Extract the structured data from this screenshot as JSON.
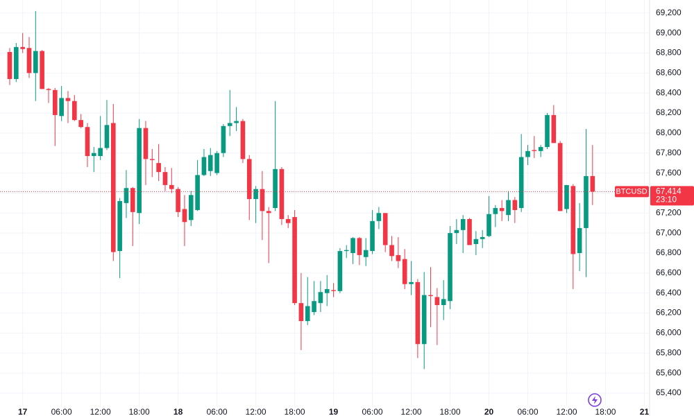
{
  "chart_data": {
    "type": "candlestick",
    "symbol": "BTCUSD",
    "last_price": {
      "value": 67414,
      "label": "67,414"
    },
    "countdown": "23:10",
    "up_color": "#089981",
    "down_color": "#f23645",
    "grid": true,
    "ylim": [
      65275,
      69330
    ],
    "xlim": [
      -1.5,
      98.7
    ],
    "yticks": [
      {
        "value": 65400,
        "label": "65,400"
      },
      {
        "value": 65600,
        "label": "65,600"
      },
      {
        "value": 65800,
        "label": "65,800"
      },
      {
        "value": 66000,
        "label": "66,000"
      },
      {
        "value": 66200,
        "label": "66,200"
      },
      {
        "value": 66400,
        "label": "66,400"
      },
      {
        "value": 66600,
        "label": "66,600"
      },
      {
        "value": 66800,
        "label": "66,800"
      },
      {
        "value": 67000,
        "label": "67,000"
      },
      {
        "value": 67200,
        "label": "67,200"
      },
      {
        "value": 67400,
        "label": "67,400"
      },
      {
        "value": 67600,
        "label": "67,600"
      },
      {
        "value": 67800,
        "label": "67,800"
      },
      {
        "value": 68000,
        "label": "68,000"
      },
      {
        "value": 68200,
        "label": "68,200"
      },
      {
        "value": 68400,
        "label": "68,400"
      },
      {
        "value": 68600,
        "label": "68,600"
      },
      {
        "value": 68800,
        "label": "68,800"
      },
      {
        "value": 69000,
        "label": "69,000"
      },
      {
        "value": 69200,
        "label": "69,200"
      }
    ],
    "xticks": [
      {
        "value": 2,
        "label": "17"
      },
      {
        "value": 8,
        "label": "06:00"
      },
      {
        "value": 14,
        "label": "12:00"
      },
      {
        "value": 20,
        "label": "18:00"
      },
      {
        "value": 26,
        "label": "18"
      },
      {
        "value": 32,
        "label": "06:00"
      },
      {
        "value": 38,
        "label": "12:00"
      },
      {
        "value": 44,
        "label": "18:00"
      },
      {
        "value": 50,
        "label": "19"
      },
      {
        "value": 56,
        "label": "06:00"
      },
      {
        "value": 62,
        "label": "12:00"
      },
      {
        "value": 68,
        "label": "18:00"
      },
      {
        "value": 74,
        "label": "20"
      },
      {
        "value": 80,
        "label": "06:00"
      },
      {
        "value": 86,
        "label": "12:00"
      },
      {
        "value": 92,
        "label": "18:00"
      },
      {
        "value": 98,
        "label": "21"
      }
    ],
    "open": [
      68810,
      68540,
      68860,
      68850,
      68600,
      68820,
      68440,
      68430,
      68170,
      68350,
      68320,
      68130,
      68060,
      67770,
      67770,
      67850,
      68100,
      66820,
      67300,
      67450,
      67200,
      68050,
      67740,
      67700,
      67610,
      67480,
      67440,
      67240,
      67130,
      67230,
      67580,
      67620,
      67600,
      67800,
      68070,
      68100,
      68120,
      67740,
      67340,
      67440,
      67220,
      67250,
      67640,
      67140,
      67160,
      66300,
      66120,
      66210,
      66300,
      66400,
      66430,
      66420,
      66820,
      66800,
      66950,
      66760,
      66820,
      67120,
      67200,
      66880,
      66780,
      66740,
      66490,
      66510,
      65890,
      66380,
      66360,
      66280,
      66320,
      67000,
      67030,
      67140,
      66890,
      66940,
      66970,
      67190,
      67250,
      67180,
      67330,
      67250,
      67760,
      67830,
      67820,
      67860,
      68180,
      67900,
      67240,
      67470,
      66800,
      67050,
      67570
    ],
    "high": [
      68850,
      68900,
      69000,
      68960,
      69220,
      68830,
      68450,
      68450,
      68470,
      68420,
      68380,
      68190,
      68100,
      67860,
      68170,
      68330,
      68290,
      67350,
      67630,
      67460,
      68140,
      68120,
      67840,
      67890,
      67660,
      67650,
      67460,
      67380,
      67420,
      67730,
      67840,
      67850,
      67820,
      68090,
      68430,
      68260,
      68140,
      67780,
      67470,
      67620,
      67260,
      68320,
      67660,
      67180,
      67230,
      66600,
      66560,
      66520,
      66520,
      66580,
      66500,
      66850,
      66880,
      66960,
      66960,
      66950,
      67230,
      67260,
      67200,
      66970,
      66960,
      66840,
      66720,
      66540,
      66610,
      66660,
      66450,
      66530,
      67070,
      67140,
      67180,
      67150,
      67020,
      67030,
      67370,
      67280,
      67330,
      67420,
      67360,
      67990,
      67880,
      67970,
      67880,
      68200,
      68280,
      67920,
      67480,
      67490,
      67300,
      68040,
      67880
    ],
    "low": [
      68480,
      68510,
      68800,
      68550,
      68320,
      68440,
      68300,
      67870,
      68120,
      68100,
      68120,
      68050,
      67660,
      67610,
      67730,
      67830,
      66720,
      66550,
      67150,
      66870,
      67090,
      67480,
      67560,
      67520,
      67420,
      67400,
      67160,
      66870,
      67070,
      67220,
      67570,
      67570,
      67580,
      67760,
      67970,
      68020,
      67700,
      67130,
      67100,
      66930,
      66700,
      67220,
      67080,
      67050,
      66280,
      65830,
      66080,
      66180,
      66210,
      66270,
      66360,
      66400,
      66750,
      66690,
      66680,
      66670,
      66790,
      67040,
      66810,
      66720,
      66650,
      66440,
      66380,
      65750,
      65640,
      66060,
      65880,
      66130,
      66240,
      66890,
      66800,
      66880,
      66780,
      66850,
      66960,
      67060,
      67120,
      67120,
      67100,
      67210,
      67680,
      67750,
      67760,
      67840,
      67900,
      67220,
      67200,
      66440,
      66620,
      66560,
      67280
    ],
    "close": [
      68540,
      68860,
      68840,
      68600,
      68820,
      68440,
      68430,
      68180,
      68350,
      68320,
      68130,
      68060,
      67770,
      67800,
      67850,
      68080,
      66810,
      67320,
      67450,
      67210,
      68050,
      67740,
      67730,
      67610,
      67480,
      67440,
      67210,
      67110,
      67380,
      67580,
      67760,
      67780,
      67800,
      68070,
      68100,
      68120,
      67740,
      67340,
      67440,
      67220,
      67200,
      67640,
      67140,
      67100,
      66300,
      66120,
      66270,
      66320,
      66410,
      66440,
      66420,
      66820,
      66830,
      66950,
      66780,
      66830,
      67120,
      67200,
      66880,
      66770,
      66720,
      66490,
      66510,
      65890,
      66380,
      66370,
      66280,
      66340,
      67000,
      67030,
      67140,
      66880,
      66940,
      66960,
      67190,
      67250,
      67220,
      67330,
      67230,
      67760,
      67820,
      67820,
      67860,
      68180,
      67900,
      67220,
      67480,
      66790,
      67050,
      67570,
      67414
    ]
  }
}
